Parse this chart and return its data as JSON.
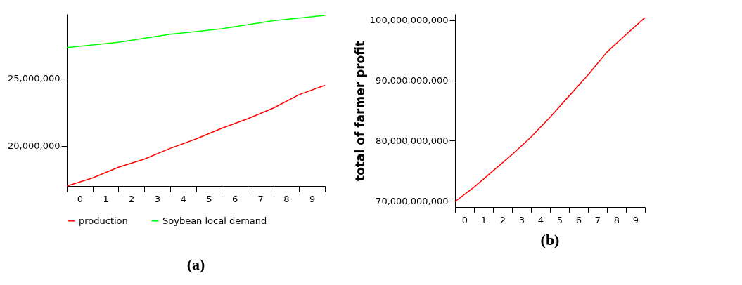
{
  "chart_data": [
    {
      "type": "line",
      "title": "(a)",
      "x": [
        -0.5,
        0.5,
        1.5,
        2.5,
        3.5,
        4.5,
        5.5,
        6.5,
        7.5,
        8.5,
        9.5
      ],
      "xlim": [
        -0.5,
        9.5
      ],
      "xticks": [
        {
          "value": -0.5,
          "label": null
        },
        0,
        {
          "value": 0.5,
          "label": null
        },
        1,
        {
          "value": 1.5,
          "label": null
        },
        2,
        {
          "value": 2.5,
          "label": null
        },
        3,
        {
          "value": 3.5,
          "label": null
        },
        4,
        {
          "value": 4.5,
          "label": null
        },
        5,
        {
          "value": 5.5,
          "label": null
        },
        6,
        {
          "value": 6.5,
          "label": null
        },
        7,
        {
          "value": 7.5,
          "label": null
        },
        8,
        {
          "value": 8.5,
          "label": null
        },
        9,
        {
          "value": 9.5,
          "label": null
        }
      ],
      "ylim": [
        17000000,
        29800000
      ],
      "yticks": [
        {
          "value": 20000000,
          "label": "20,000,000"
        },
        {
          "value": 25000000,
          "label": "25,000,000"
        }
      ],
      "grid": false,
      "legend": "bottom",
      "series": [
        {
          "name": "production",
          "color": "#ff0000",
          "values": [
            17000000,
            17600000,
            18400000,
            19000000,
            19800000,
            20500000,
            21300000,
            22000000,
            22800000,
            23800000,
            24500000
          ]
        },
        {
          "name": "Soybean local demand",
          "color": "#00ff00",
          "values": [
            27300000,
            27500000,
            27700000,
            28000000,
            28300000,
            28500000,
            28700000,
            29000000,
            29300000,
            29500000,
            29700000
          ]
        }
      ]
    },
    {
      "type": "line",
      "title": "(b)",
      "ylabel": "total of farmer profit",
      "x": [
        -0.5,
        0.5,
        1.5,
        2.5,
        3.5,
        4.5,
        5.5,
        6.5,
        7.5,
        8.5,
        9.5
      ],
      "xlim": [
        -0.5,
        9.5
      ],
      "xticks": [
        {
          "value": -0.5,
          "label": null
        },
        0,
        {
          "value": 0.5,
          "label": null
        },
        1,
        {
          "value": 1.5,
          "label": null
        },
        2,
        {
          "value": 2.5,
          "label": null
        },
        3,
        {
          "value": 3.5,
          "label": null
        },
        4,
        {
          "value": 4.5,
          "label": null
        },
        5,
        {
          "value": 5.5,
          "label": null
        },
        6,
        {
          "value": 6.5,
          "label": null
        },
        7,
        {
          "value": 7.5,
          "label": null
        },
        8,
        {
          "value": 8.5,
          "label": null
        },
        9,
        {
          "value": 9.5,
          "label": null
        }
      ],
      "ylim": [
        69000000000,
        101000000000
      ],
      "yticks": [
        {
          "value": 70000000000,
          "label": "70,000,000,000"
        },
        {
          "value": 80000000000,
          "label": "80,000,000,000"
        },
        {
          "value": 90000000000,
          "label": "90,000,000,000"
        },
        {
          "value": 100000000000,
          "label": "100,000,000,000"
        }
      ],
      "grid": false,
      "legend": false,
      "series": [
        {
          "color": "#ff0000",
          "values": [
            69900000000,
            72300000000,
            75000000000,
            77700000000,
            80600000000,
            83900000000,
            87400000000,
            90900000000,
            94700000000,
            97600000000,
            100400000000
          ]
        }
      ]
    }
  ]
}
